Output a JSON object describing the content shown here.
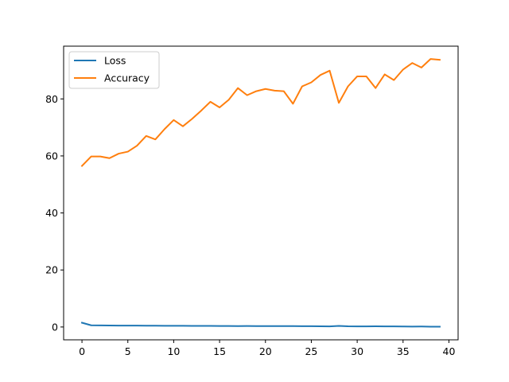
{
  "chart_data": {
    "type": "line",
    "title": "",
    "xlabel": "",
    "ylabel": "",
    "xlim": [
      -2,
      41
    ],
    "ylim": [
      -4.5,
      98.5
    ],
    "xticks": [
      0,
      5,
      10,
      15,
      20,
      25,
      30,
      35,
      40
    ],
    "yticks": [
      0,
      20,
      40,
      60,
      80
    ],
    "grid": false,
    "legend_position": "upper-left",
    "x": [
      0,
      1,
      2,
      3,
      4,
      5,
      6,
      7,
      8,
      9,
      10,
      11,
      12,
      13,
      14,
      15,
      16,
      17,
      18,
      19,
      20,
      21,
      22,
      23,
      24,
      25,
      26,
      27,
      28,
      29,
      30,
      31,
      32,
      33,
      34,
      35,
      36,
      37,
      38,
      39
    ],
    "series": [
      {
        "name": "Loss",
        "color": "#1f77b4",
        "values": [
          1.5,
          0.6,
          0.55,
          0.52,
          0.5,
          0.5,
          0.48,
          0.45,
          0.45,
          0.43,
          0.42,
          0.42,
          0.4,
          0.38,
          0.38,
          0.36,
          0.35,
          0.32,
          0.34,
          0.3,
          0.3,
          0.3,
          0.3,
          0.32,
          0.28,
          0.27,
          0.25,
          0.22,
          0.4,
          0.25,
          0.22,
          0.22,
          0.24,
          0.2,
          0.2,
          0.18,
          0.15,
          0.17,
          0.12,
          0.12
        ]
      },
      {
        "name": "Accuracy",
        "color": "#ff7f0e",
        "values": [
          56.5,
          59.8,
          59.8,
          59.2,
          60.8,
          61.5,
          63.6,
          67.0,
          65.8,
          69.4,
          72.6,
          70.4,
          73.0,
          75.9,
          79.0,
          77.0,
          79.7,
          83.8,
          81.3,
          82.7,
          83.5,
          82.9,
          82.7,
          78.3,
          84.4,
          85.8,
          88.4,
          89.9,
          78.6,
          84.4,
          87.9,
          87.9,
          83.8,
          88.6,
          86.6,
          90.3,
          92.6,
          91.0,
          94.0,
          93.7
        ]
      }
    ]
  }
}
